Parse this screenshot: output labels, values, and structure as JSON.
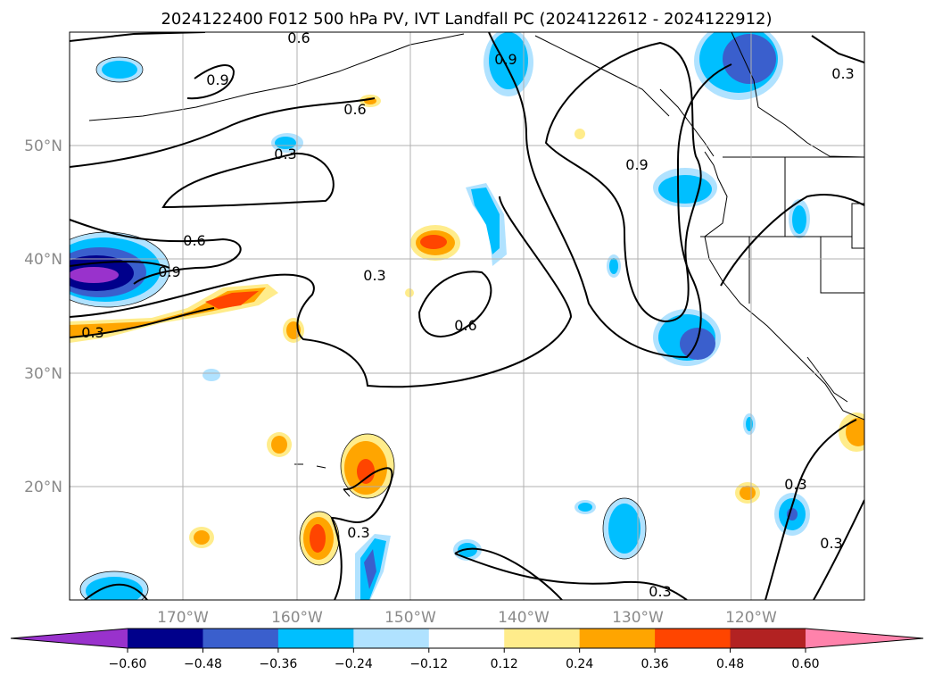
{
  "title": "2024122400 F012 500 hPa PV, IVT Landfall PC (2024122612 - 2024122912)",
  "lat_labels": [
    "50°N",
    "40°N",
    "30°N",
    "20°N"
  ],
  "lon_labels": [
    "170°W",
    "160°W",
    "150°W",
    "140°W",
    "130°W",
    "120°W"
  ],
  "colorbar": {
    "ticks": [
      "−0.60",
      "−0.48",
      "−0.36",
      "−0.24",
      "−0.12",
      "0.12",
      "0.24",
      "0.36",
      "0.48",
      "0.60"
    ],
    "colors": [
      "#9932cc",
      "#00008b",
      "#3a5fcd",
      "#00bfff",
      "#b0e2ff",
      "#ffffff",
      "#ffec8b",
      "#ffa500",
      "#ff4500",
      "#b22222",
      "#ff82ab"
    ]
  },
  "contour_labels": [
    "0.9",
    "0.6",
    "0.3",
    "0.6",
    "0.3",
    "0.6",
    "0.9",
    "0.9",
    "0.3",
    "0.3",
    "0.6",
    "0.9",
    "0.3",
    "0.3",
    "0.3",
    "0.3",
    "0.3"
  ],
  "legend_colors": {
    "purple": "#9932cc",
    "navy": "#00008b",
    "royal": "#3a5fcd",
    "sky": "#00bfff",
    "light": "#b0e2ff",
    "yellow": "#ffec8b",
    "orange": "#ffa500",
    "red": "#ff4500"
  }
}
